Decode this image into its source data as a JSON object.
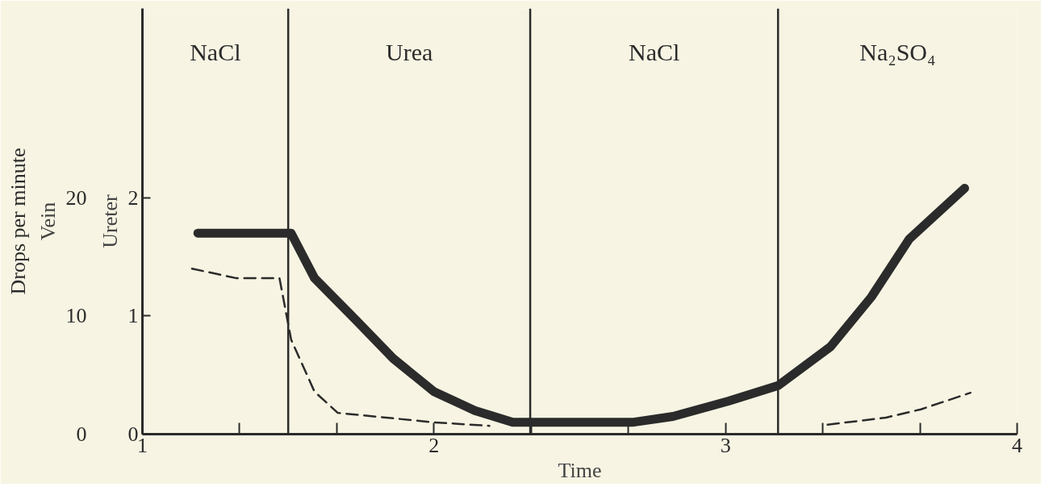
{
  "chart_data": {
    "type": "line",
    "xlabel": "Time",
    "ylabel": "Vein",
    "y2label": "Ureter",
    "annotations": [
      "Drops per minute",
      "NaCl",
      "Urea",
      "NaCl",
      "Na₂SO₄"
    ],
    "x": [
      1.19,
      1.51,
      1.59,
      1.73,
      1.86,
      2.0,
      2.14,
      2.27,
      2.41,
      2.68,
      2.82,
      3.01,
      3.18,
      3.36,
      3.5,
      3.63,
      3.82
    ],
    "series": [
      {
        "color": "#2b2b2b",
        "line_style": "solid",
        "values": [
          17,
          17,
          13.2,
          9.7,
          6.4,
          3.6,
          2.0,
          1.0,
          1.0,
          1.0,
          1.5,
          2.8,
          4.1,
          7.4,
          11.6,
          16.5,
          20.8
        ]
      },
      {
        "color": "#2b2b2b",
        "line_style": "dashed",
        "x": [
          1.17,
          1.32,
          1.47,
          1.51,
          1.59,
          1.67,
          2.0,
          2.19,
          2.8,
          3.35,
          3.55,
          3.67,
          3.84
        ],
        "values": [
          14.0,
          13.2,
          13.2,
          8,
          3.6,
          1.8,
          1.0,
          0.7,
          null,
          0.8,
          1.4,
          2.1,
          3.5
        ]
      }
    ],
    "xlim": [
      1,
      4
    ],
    "xticks": [
      1,
      {
        "value": 1.333,
        "label": null
      },
      {
        "value": 1.667,
        "label": null
      },
      2,
      {
        "value": 2.333,
        "label": null
      },
      {
        "value": 2.667,
        "label": null
      },
      3,
      {
        "value": 3.333,
        "label": null
      },
      {
        "value": 3.667,
        "label": null
      },
      4
    ],
    "ylim": [
      0,
      36
    ],
    "yticks": [
      0,
      10,
      20
    ],
    "y2lim": [
      0,
      3.6
    ],
    "y2ticks": [
      0,
      1,
      2
    ],
    "ref_lines": [
      {
        "axis": "x",
        "value": 1.5
      },
      {
        "axis": "x",
        "value": 2.33
      },
      {
        "axis": "x",
        "value": 3.18
      }
    ],
    "grid": false,
    "marker": "none"
  }
}
